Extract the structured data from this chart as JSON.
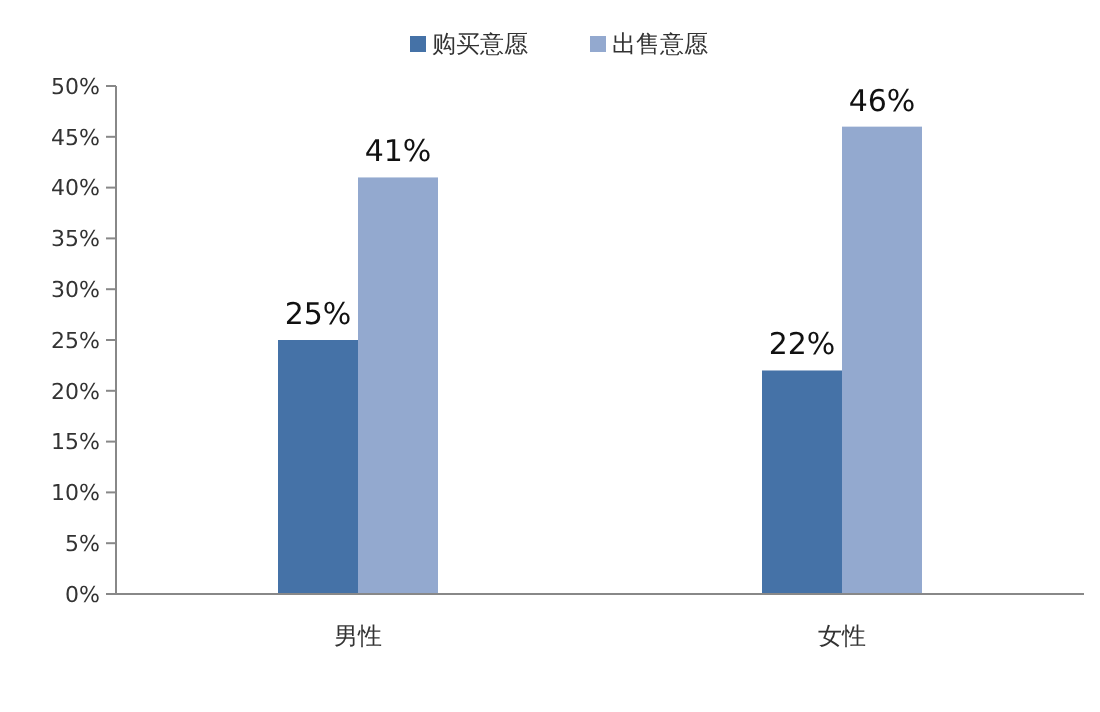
{
  "chart_data": {
    "type": "bar",
    "categories": [
      "男性",
      "女性"
    ],
    "series": [
      {
        "name": "购买意愿",
        "color": "#4572a7",
        "values": [
          25,
          22
        ],
        "value_labels": [
          "25%",
          "22%"
        ]
      },
      {
        "name": "出售意愿",
        "color": "#93a9cf",
        "values": [
          41,
          46
        ],
        "value_labels": [
          "41%",
          "46%"
        ]
      }
    ],
    "ylim": [
      0,
      50
    ],
    "yticks": [
      {
        "value": 0,
        "label": "0%"
      },
      {
        "value": 5,
        "label": "5%"
      },
      {
        "value": 10,
        "label": "10%"
      },
      {
        "value": 15,
        "label": "15%"
      },
      {
        "value": 20,
        "label": "20%"
      },
      {
        "value": 25,
        "label": "25%"
      },
      {
        "value": 30,
        "label": "30%"
      },
      {
        "value": 35,
        "label": "35%"
      },
      {
        "value": 40,
        "label": "40%"
      },
      {
        "value": 45,
        "label": "45%"
      },
      {
        "value": 50,
        "label": "50%"
      }
    ],
    "grid": false,
    "legend": "top"
  }
}
